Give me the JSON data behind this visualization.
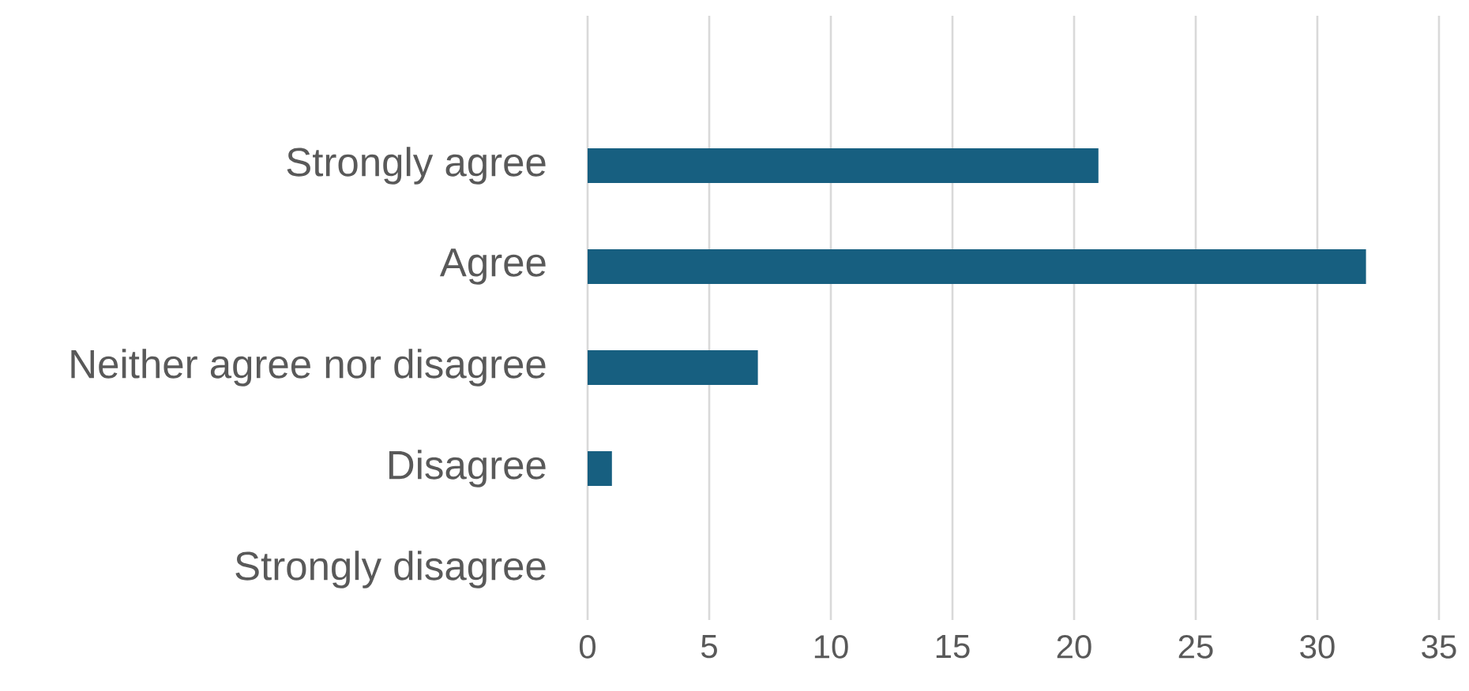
{
  "chart_data": {
    "type": "bar",
    "orientation": "horizontal",
    "categories": [
      "Strongly agree",
      "Agree",
      "Neither agree nor disagree",
      "Disagree",
      "Strongly disagree"
    ],
    "values": [
      21,
      32,
      7,
      1,
      0
    ],
    "color": "#175f80",
    "xlim": [
      0,
      35
    ],
    "xticks": [
      0,
      5,
      10,
      15,
      20,
      25,
      30,
      35
    ],
    "grid": "x"
  }
}
